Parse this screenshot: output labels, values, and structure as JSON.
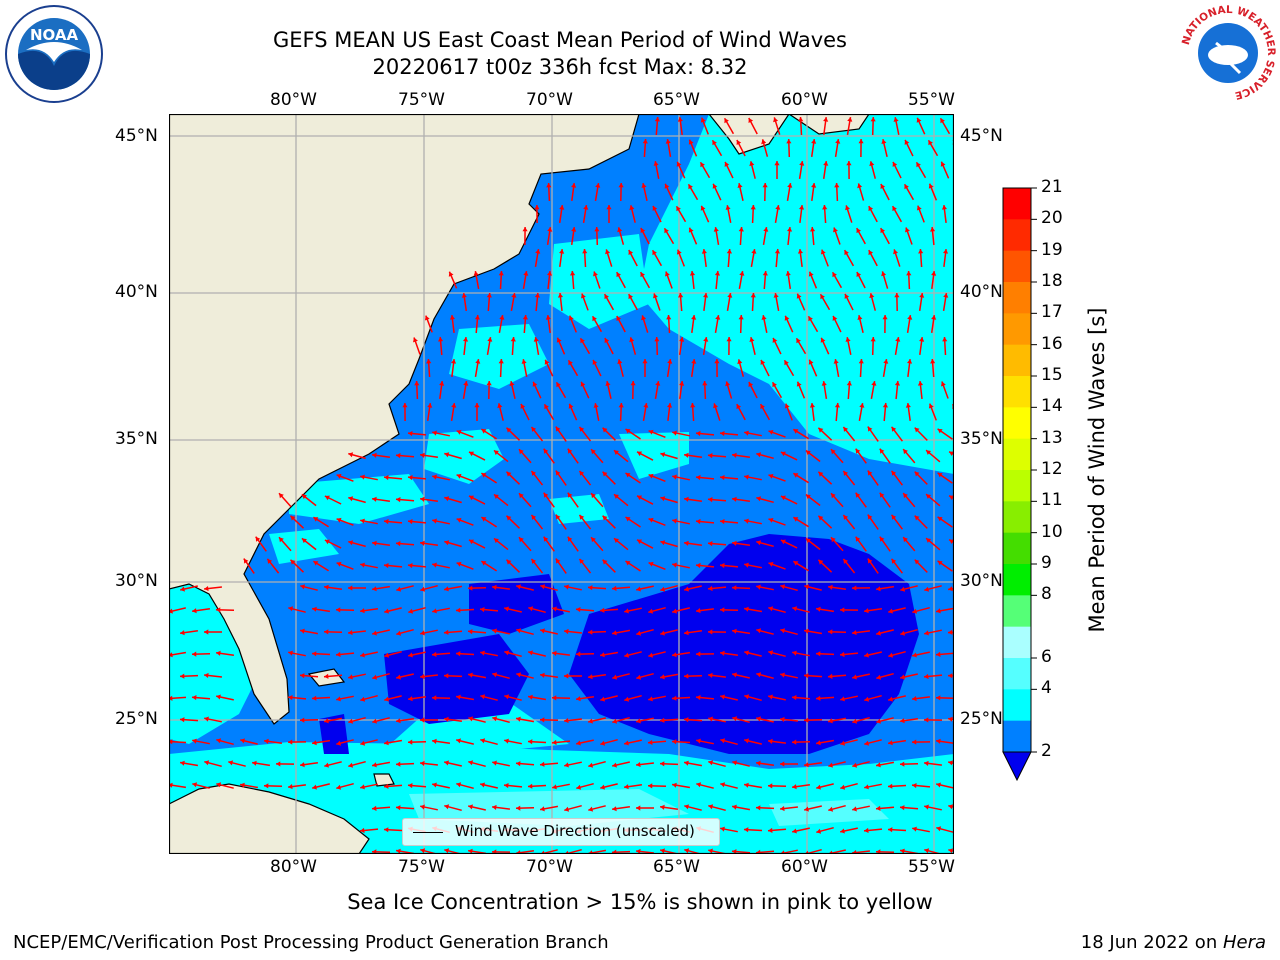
{
  "header": {
    "title_line1": "GEFS MEAN US East Coast Mean Period of Wind Waves",
    "title_line2": "20220617 t00z 336h fcst   Max: 8.32"
  },
  "logos": {
    "noaa": {
      "text": "NOAA"
    },
    "nws": {
      "ring_text": "NATIONAL WEATHER SERVICE"
    }
  },
  "map": {
    "lon_labels": [
      "80°W",
      "75°W",
      "70°W",
      "65°W",
      "60°W",
      "55°W"
    ],
    "lat_labels": [
      "45°N",
      "40°N",
      "35°N",
      "30°N",
      "25°N"
    ],
    "legend_label": "Wind Wave Direction (unscaled)",
    "colors": {
      "land": "#efedda",
      "ocean_band_2_4": "#0080ff",
      "ocean_band_4_6": "#00ffff",
      "ocean_band_6_8": "#55ffff",
      "ocean_band_lt2": "#0000ee",
      "arrow": "#ff0000"
    }
  },
  "colorbar": {
    "label": "Mean Period of Wind Waves [s]",
    "ticks": [
      "21",
      "20",
      "19",
      "18",
      "17",
      "16",
      "15",
      "14",
      "13",
      "12",
      "11",
      "10",
      "9",
      "8",
      "6",
      "4",
      "2"
    ],
    "colors": [
      "#ff0000",
      "#ff2a00",
      "#ff5500",
      "#ff7f00",
      "#ff9900",
      "#ffbb00",
      "#ffe000",
      "#ffff00",
      "#ddff00",
      "#bbff00",
      "#88ee00",
      "#44dd00",
      "#00ee00",
      "#55ff77",
      "#aaffff",
      "#55ffff",
      "#00ffff",
      "#0080ff"
    ],
    "extend_color": "#0000ee"
  },
  "footer": {
    "note": "Sea Ice Concentration > 15% is shown in pink to yellow",
    "left": "NCEP/EMC/Verification Post Processing Product Generation Branch",
    "date": "18 Jun 2022 on ",
    "machine": "Hera"
  }
}
